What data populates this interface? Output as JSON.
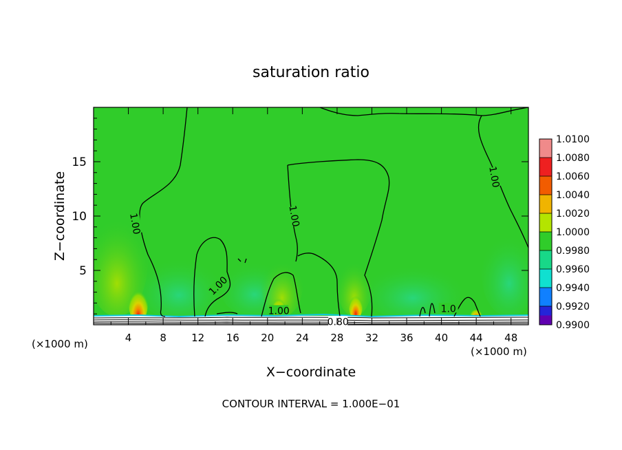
{
  "chart_data": {
    "type": "heatmap",
    "title": "saturation ratio",
    "xlabel": "X−coordinate",
    "ylabel": "Z−coordinate",
    "x_unit_left": "(×1000 m)",
    "x_unit_right": "(×1000 m)",
    "footer": "CONTOUR INTERVAL = 1.000E−01",
    "xlim": [
      0,
      50
    ],
    "ylim": [
      0,
      20
    ],
    "x_ticks": [
      4,
      8,
      12,
      16,
      20,
      24,
      28,
      32,
      36,
      40,
      44,
      48
    ],
    "x_tick_labels": [
      "4",
      "8",
      "12",
      "16",
      "20",
      "24",
      "28",
      "32",
      "36",
      "40",
      "44",
      "48"
    ],
    "y_ticks": [
      5,
      10,
      15
    ],
    "y_tick_labels": [
      "5",
      "10",
      "15"
    ],
    "colorbar": {
      "min": 0.99,
      "max": 1.01,
      "labels": [
        "1.0100",
        "1.0080",
        "1.0060",
        "1.0040",
        "1.0020",
        "1.0000",
        "0.9980",
        "0.9960",
        "0.9940",
        "0.9920",
        "0.9900"
      ],
      "colors": [
        "#f08a8a",
        "#ee2020",
        "#f25c00",
        "#f0b400",
        "#b4e400",
        "#30cc2a",
        "#18d888",
        "#10e0d0",
        "#1080ff",
        "#2424d8",
        "#6000b0"
      ]
    },
    "contour_labels": [
      {
        "text": "1.00",
        "x": 4.8,
        "y": 9.3,
        "angle": 80
      },
      {
        "text": "1.00",
        "x": 14.3,
        "y": 3.6,
        "angle": -45
      },
      {
        "text": "1.00",
        "x": 23.1,
        "y": 10.0,
        "angle": 80
      },
      {
        "text": "1.00",
        "x": 21.3,
        "y": 1.3,
        "angle": 0
      },
      {
        "text": "1.00",
        "x": 46.1,
        "y": 13.6,
        "angle": 80
      },
      {
        "text": "1.0",
        "x": 40.8,
        "y": 1.5,
        "angle": 0
      },
      {
        "text": "0.80",
        "x": 28.1,
        "y": 0.3,
        "angle": 0
      }
    ],
    "hotspots": [
      {
        "x": 5.2,
        "z": 1.5,
        "peak": 1.007
      },
      {
        "x": 21.4,
        "z": 1.4,
        "peak": 1.006
      },
      {
        "x": 30.2,
        "z": 1.4,
        "peak": 1.006
      },
      {
        "x": 43.6,
        "z": 1.0,
        "peak": 1.005
      }
    ],
    "grid": false,
    "legend_position": "right"
  }
}
